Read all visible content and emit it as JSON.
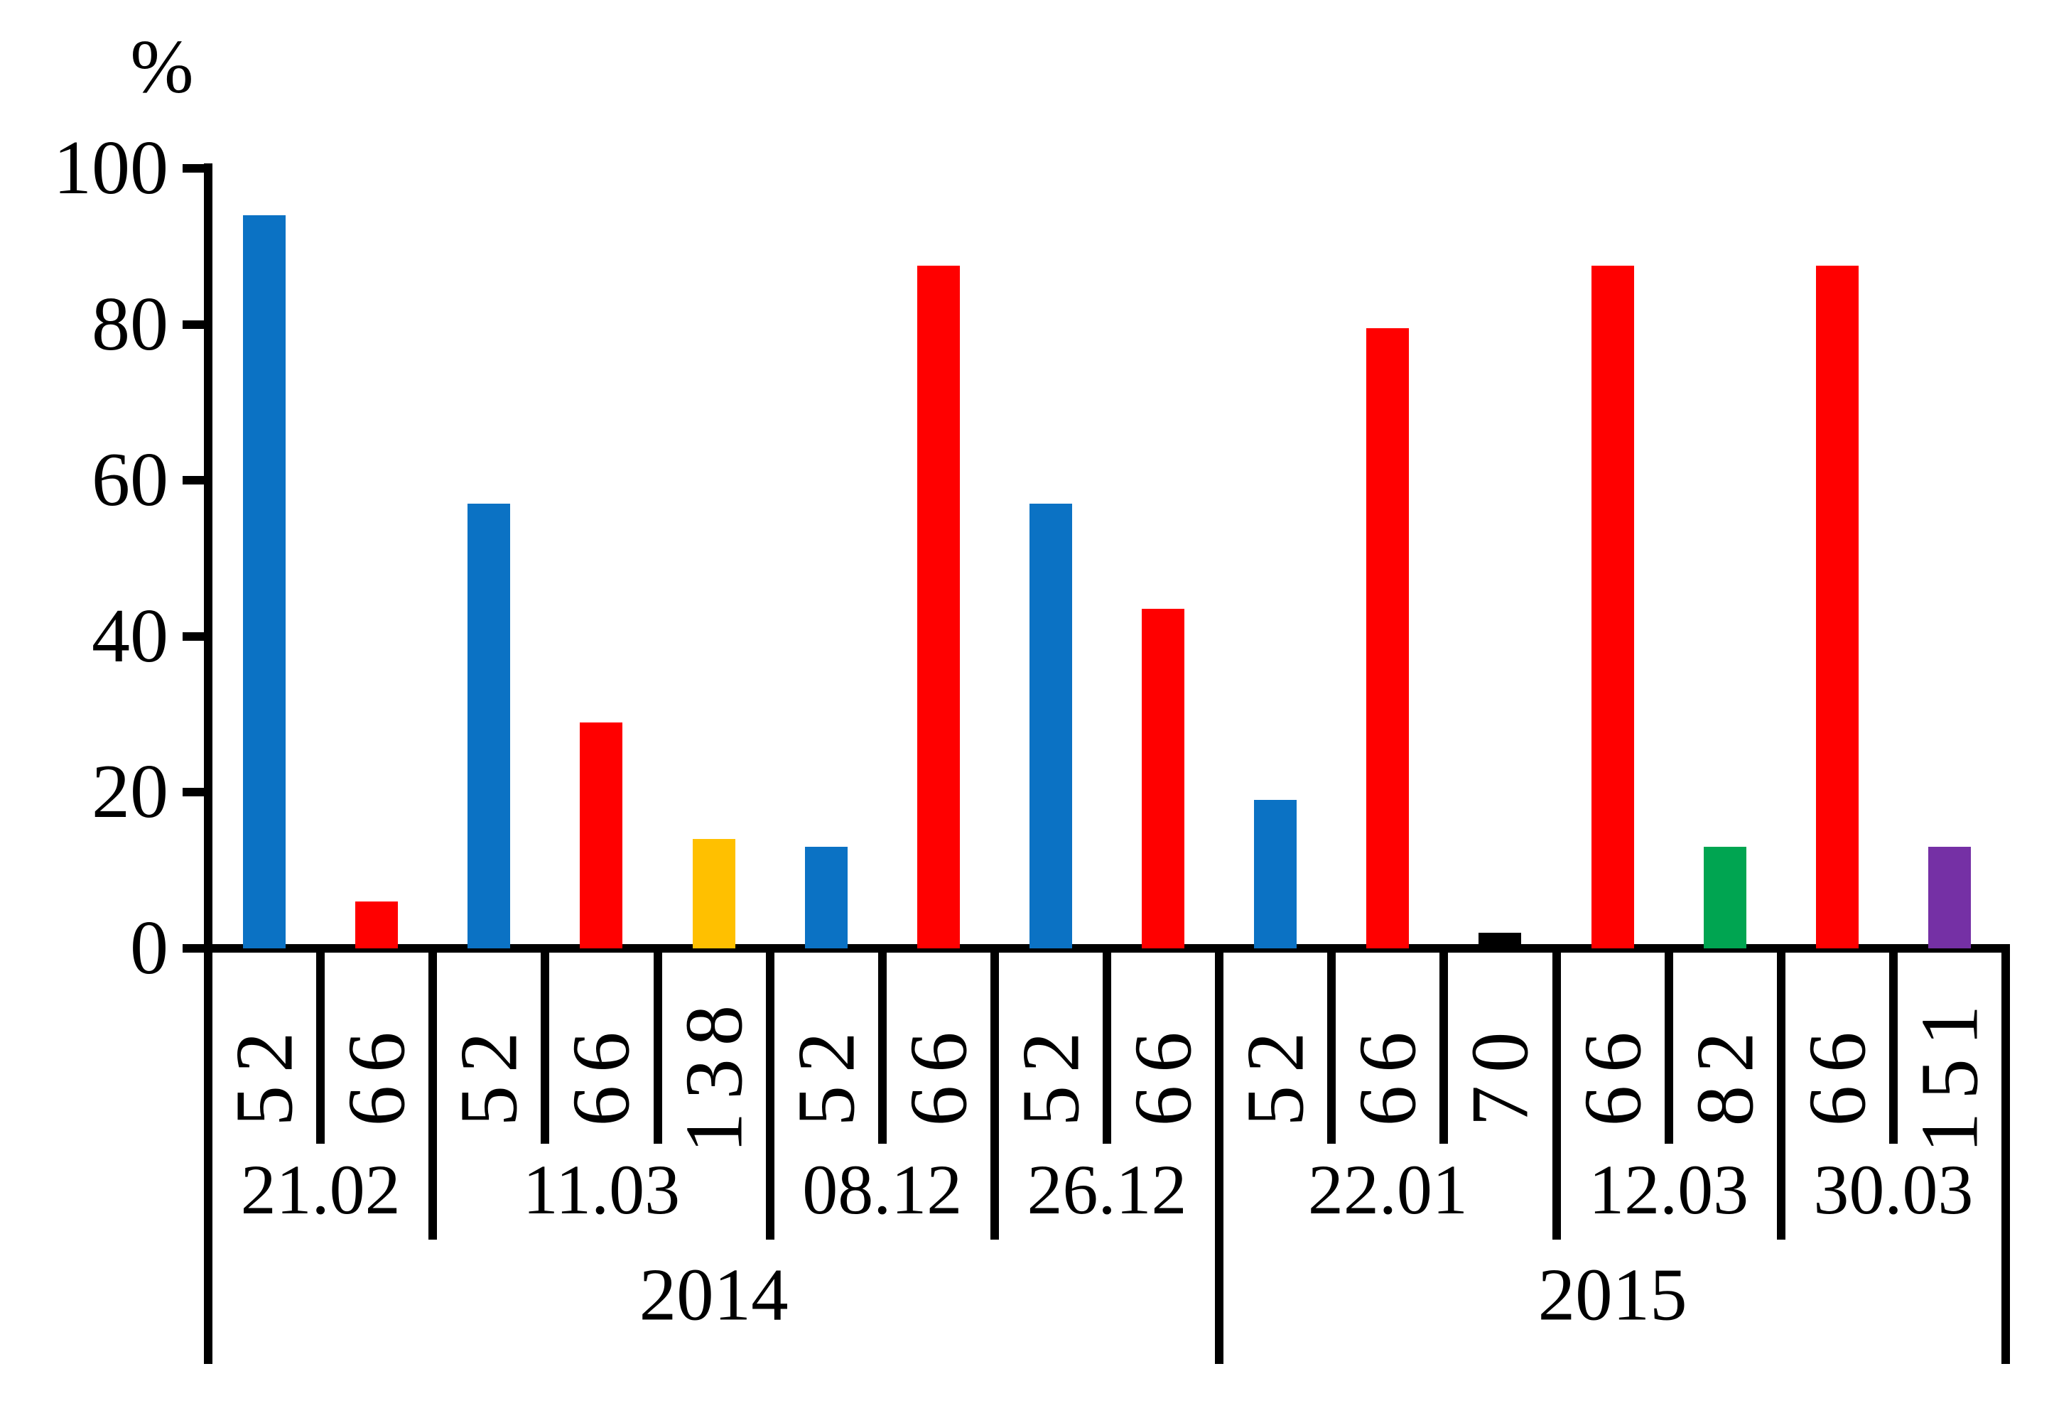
{
  "chart_data": {
    "type": "bar",
    "title": "",
    "y_axis": {
      "label": "%",
      "ticks": [
        "0",
        "20",
        "40",
        "60",
        "80",
        "100"
      ],
      "tick_values": [
        0,
        20,
        40,
        60,
        80,
        100
      ],
      "range": [
        0,
        100
      ]
    },
    "x_axis": {
      "level1_note": "rotated sample numbers under each bar",
      "level2_note": "date groups",
      "level3_note": "year groups"
    },
    "bars": [
      {
        "label": "52",
        "value": 94,
        "color": "#0B72C4",
        "date": "21.02",
        "year": "2014"
      },
      {
        "label": "66",
        "value": 6,
        "color": "#FF0000",
        "date": "21.02",
        "year": "2014"
      },
      {
        "label": "52",
        "value": 57,
        "color": "#0B72C4",
        "date": "11.03",
        "year": "2014"
      },
      {
        "label": "66",
        "value": 29,
        "color": "#FF0000",
        "date": "11.03",
        "year": "2014"
      },
      {
        "label": "138",
        "value": 14,
        "color": "#FFC000",
        "date": "11.03",
        "year": "2014"
      },
      {
        "label": "52",
        "value": 13,
        "color": "#0B72C4",
        "date": "08.12",
        "year": "2014"
      },
      {
        "label": "66",
        "value": 87.5,
        "color": "#FF0000",
        "date": "08.12",
        "year": "2014"
      },
      {
        "label": "52",
        "value": 57,
        "color": "#0B72C4",
        "date": "26.12",
        "year": "2014"
      },
      {
        "label": "66",
        "value": 43.5,
        "color": "#FF0000",
        "date": "26.12",
        "year": "2014"
      },
      {
        "label": "52",
        "value": 19,
        "color": "#0B72C4",
        "date": "22.01",
        "year": "2015"
      },
      {
        "label": "66",
        "value": 79.5,
        "color": "#FF0000",
        "date": "22.01",
        "year": "2015"
      },
      {
        "label": "70",
        "value": 2,
        "color": "#000000",
        "date": "22.01",
        "year": "2015"
      },
      {
        "label": "66",
        "value": 87.5,
        "color": "#FF0000",
        "date": "12.03",
        "year": "2015"
      },
      {
        "label": "82",
        "value": 13,
        "color": "#00A551",
        "date": "12.03",
        "year": "2015"
      },
      {
        "label": "66",
        "value": 87.5,
        "color": "#FF0000",
        "date": "30.03",
        "year": "2015"
      },
      {
        "label": "151",
        "value": 13,
        "color": "#7530A5",
        "date": "30.03",
        "year": "2015"
      }
    ],
    "date_groups": [
      "21.02",
      "11.03",
      "08.12",
      "26.12",
      "22.01",
      "12.03",
      "30.03"
    ],
    "year_groups": [
      "2014",
      "2015"
    ],
    "layout_hints": {
      "grid": false,
      "legend": "none",
      "bar_label_rotation": "bottom-to-top",
      "multi_level_category_axis": true
    }
  }
}
